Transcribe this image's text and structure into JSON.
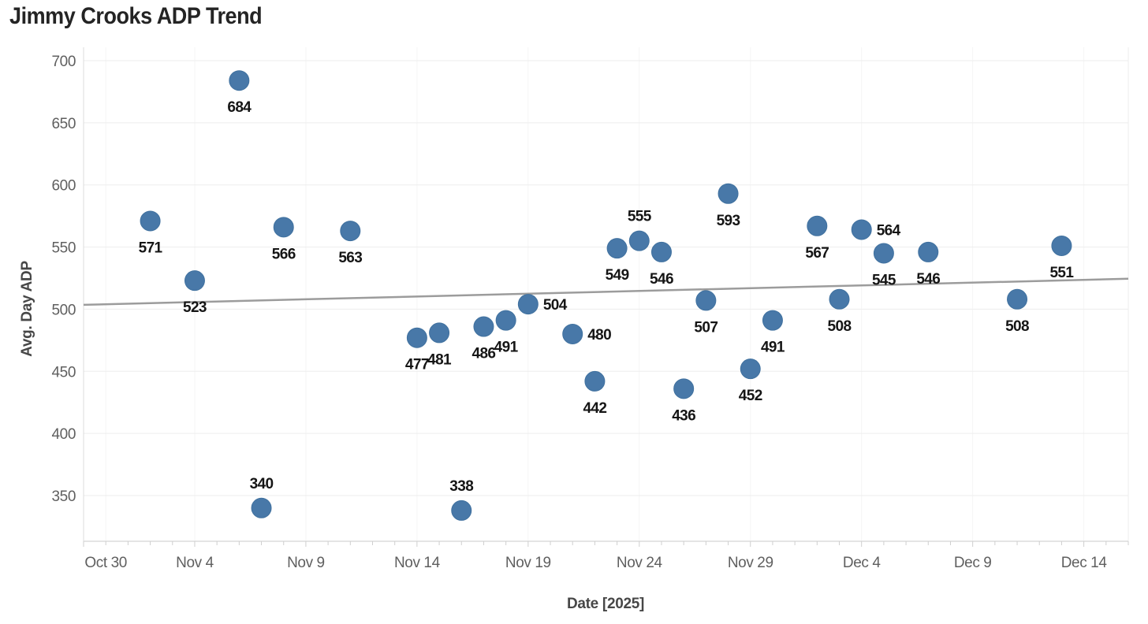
{
  "page": {
    "title": "Jimmy Crooks ADP Trend"
  },
  "chart_data": {
    "type": "scatter",
    "title": "Jimmy Crooks ADP Trend",
    "xlabel": "Date [2025]",
    "ylabel": "Avg. Day ADP",
    "legend": "none",
    "grid": "horizontal major, faint vertical major",
    "y_ticks": [
      700,
      650,
      600,
      550,
      500,
      450,
      400,
      350
    ],
    "y_domain": [
      314,
      711
    ],
    "x_tick_labels": [
      {
        "label": "Oct 30",
        "slot": 1
      },
      {
        "label": "Nov 4",
        "slot": 5
      },
      {
        "label": "Nov 9",
        "slot": 10
      },
      {
        "label": "Nov 14",
        "slot": 15
      },
      {
        "label": "Nov 19",
        "slot": 20
      },
      {
        "label": "Nov 24",
        "slot": 25
      },
      {
        "label": "Nov 29",
        "slot": 30
      },
      {
        "label": "Dec 4",
        "slot": 35
      },
      {
        "label": "Dec 9",
        "slot": 40
      },
      {
        "label": "Dec 14",
        "slot": 45
      }
    ],
    "x_minor_tick_slots": 47,
    "points": [
      {
        "date": "Nov 2",
        "slot": 3,
        "adp": 571,
        "label_pos": "below"
      },
      {
        "date": "Nov 4",
        "slot": 5,
        "adp": 523,
        "label_pos": "below"
      },
      {
        "date": "Nov 6",
        "slot": 7,
        "adp": 684,
        "label_pos": "below"
      },
      {
        "date": "Nov 7",
        "slot": 8,
        "adp": 340,
        "label_pos": "above"
      },
      {
        "date": "Nov 8",
        "slot": 9,
        "adp": 566,
        "label_pos": "below"
      },
      {
        "date": "Nov 11",
        "slot": 12,
        "adp": 563,
        "label_pos": "below"
      },
      {
        "date": "Nov 14",
        "slot": 15,
        "adp": 477,
        "label_pos": "below"
      },
      {
        "date": "Nov 15",
        "slot": 16,
        "adp": 481,
        "label_pos": "below"
      },
      {
        "date": "Nov 16",
        "slot": 17,
        "adp": 338,
        "label_pos": "above"
      },
      {
        "date": "Nov 17",
        "slot": 18,
        "adp": 486,
        "label_pos": "below"
      },
      {
        "date": "Nov 18",
        "slot": 19,
        "adp": 491,
        "label_pos": "below"
      },
      {
        "date": "Nov 19",
        "slot": 20,
        "adp": 504,
        "label_pos": "right"
      },
      {
        "date": "Nov 21",
        "slot": 22,
        "adp": 480,
        "label_pos": "right"
      },
      {
        "date": "Nov 22",
        "slot": 23,
        "adp": 442,
        "label_pos": "below"
      },
      {
        "date": "Nov 23",
        "slot": 24,
        "adp": 549,
        "label_pos": "below"
      },
      {
        "date": "Nov 24",
        "slot": 25,
        "adp": 555,
        "label_pos": "above"
      },
      {
        "date": "Nov 25",
        "slot": 26,
        "adp": 546,
        "label_pos": "below"
      },
      {
        "date": "Nov 26",
        "slot": 27,
        "adp": 436,
        "label_pos": "below"
      },
      {
        "date": "Nov 27",
        "slot": 28,
        "adp": 507,
        "label_pos": "below"
      },
      {
        "date": "Nov 28",
        "slot": 29,
        "adp": 593,
        "label_pos": "below"
      },
      {
        "date": "Nov 29",
        "slot": 30,
        "adp": 452,
        "label_pos": "below"
      },
      {
        "date": "Nov 30",
        "slot": 31,
        "adp": 491,
        "label_pos": "below"
      },
      {
        "date": "Dec 2",
        "slot": 33,
        "adp": 567,
        "label_pos": "below"
      },
      {
        "date": "Dec 3",
        "slot": 34,
        "adp": 508,
        "label_pos": "below"
      },
      {
        "date": "Dec 4",
        "slot": 35,
        "adp": 564,
        "label_pos": "right"
      },
      {
        "date": "Dec 5",
        "slot": 36,
        "adp": 545,
        "label_pos": "below"
      },
      {
        "date": "Dec 7",
        "slot": 38,
        "adp": 546,
        "label_pos": "below"
      },
      {
        "date": "Dec 11",
        "slot": 42,
        "adp": 508,
        "label_pos": "below"
      },
      {
        "date": "Dec 13",
        "slot": 44,
        "adp": 551,
        "label_pos": "below"
      }
    ],
    "trend_line": {
      "start_adp": 503.5,
      "end_adp": 524.5
    },
    "colors": {
      "point": "#4878a8",
      "point_edge": "#40719f",
      "trend": "#9c9c9c",
      "point_label": "#151515",
      "tick_text": "#5f5f5f",
      "grid": "#ededed",
      "grid_vertical": "#f5f5f5",
      "axis_line": "#dcdcdc",
      "minor_tick": "#cfcfcf",
      "title": "#242424",
      "axis_title": "#474747",
      "background": "#ffffff"
    }
  }
}
